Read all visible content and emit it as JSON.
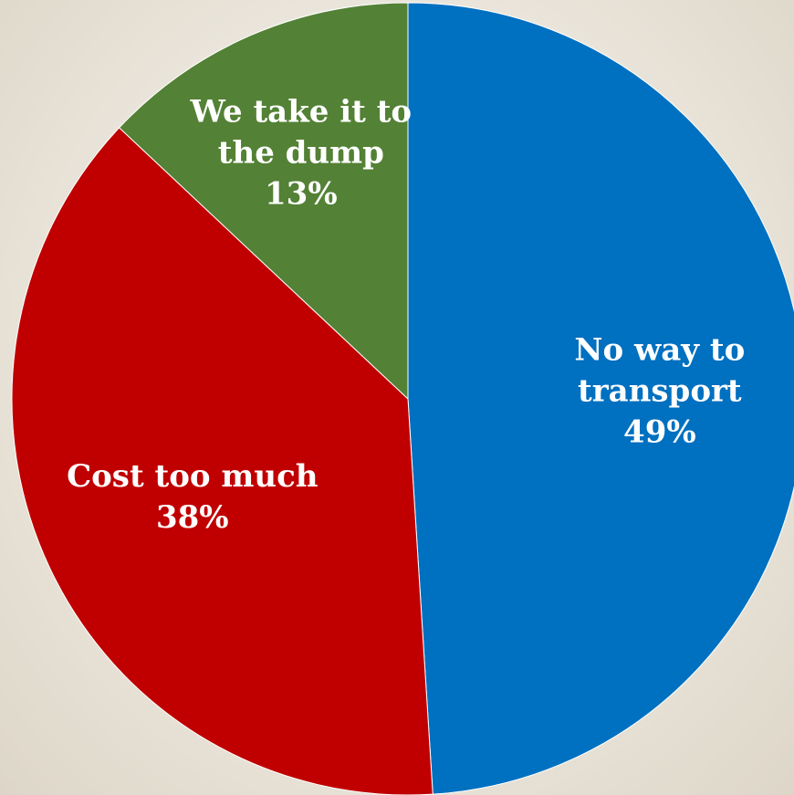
{
  "chart_data": {
    "type": "pie",
    "title": "",
    "slices": [
      {
        "name": "No way to transport",
        "value": 49,
        "percent_label": "49%",
        "color": "#0070c0",
        "label_lines": [
          "No way to",
          "transport",
          "49%"
        ]
      },
      {
        "name": "Cost too much",
        "value": 38,
        "percent_label": "38%",
        "color": "#c00000",
        "label_lines": [
          "Cost too much",
          "38%"
        ]
      },
      {
        "name": "We take it to the dump",
        "value": 13,
        "percent_label": "13%",
        "color": "#538135",
        "label_lines": [
          "We take it to",
          "the dump",
          "13%"
        ]
      }
    ],
    "start_angle_deg": 0,
    "direction": "clockwise",
    "legend": "none",
    "data_labels": "inside"
  }
}
